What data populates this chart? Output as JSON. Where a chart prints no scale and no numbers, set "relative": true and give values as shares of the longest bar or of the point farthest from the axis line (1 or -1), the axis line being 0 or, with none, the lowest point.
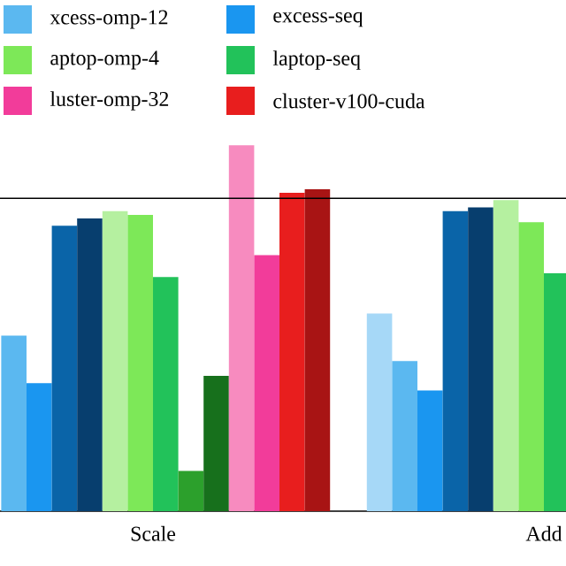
{
  "chart_data": {
    "type": "bar",
    "relative": true,
    "categories": [
      "Scale",
      "Add"
    ],
    "series": [
      {
        "color": "#a6d8f7",
        "values": [
          null,
          0.54
        ]
      },
      {
        "name": "xcess-omp-12",
        "color": "#5bb8f0",
        "values": [
          0.48,
          0.41
        ]
      },
      {
        "name": "excess-seq",
        "color": "#1a96f0",
        "values": [
          0.35,
          0.33
        ]
      },
      {
        "color": "#0a64a8",
        "values": [
          0.78,
          0.82
        ]
      },
      {
        "color": "#073e6e",
        "values": [
          0.8,
          0.83
        ]
      },
      {
        "color": "#b5f0a0",
        "values": [
          0.82,
          0.85
        ]
      },
      {
        "name": "aptop-omp-4",
        "color": "#7de858",
        "values": [
          0.81,
          0.79
        ]
      },
      {
        "name": "laptop-seq",
        "color": "#22c25a",
        "values": [
          0.64,
          0.65
        ]
      },
      {
        "color": "#2ca02c",
        "values": [
          0.11,
          null
        ]
      },
      {
        "color": "#17701c",
        "values": [
          0.37,
          null
        ]
      },
      {
        "color": "#f78bbf",
        "values": [
          1,
          null
        ]
      },
      {
        "name": "luster-omp-32",
        "color": "#f23c9a",
        "values": [
          0.7,
          null
        ]
      },
      {
        "name": "cluster-v100-cuda",
        "color": "#e81e1e",
        "values": [
          0.87,
          null
        ]
      },
      {
        "color": "#a81414",
        "values": [
          0.88,
          null
        ]
      }
    ],
    "ref_lines": [
      {
        "axis": "y",
        "value": 0.855,
        "color": "#000000"
      }
    ],
    "legend": "top"
  }
}
